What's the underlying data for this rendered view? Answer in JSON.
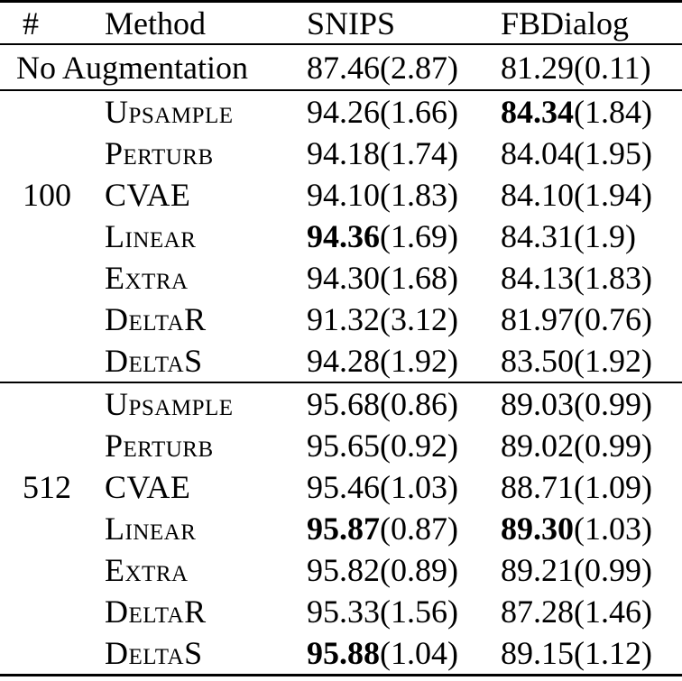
{
  "colors": {
    "background": "#ffffff",
    "text": "#000000"
  },
  "table": {
    "headers": {
      "count": "#",
      "method": "Method",
      "snips": "SNIPS",
      "fbdialog": "FBDialog"
    },
    "no_aug": {
      "label": "No Augmentation",
      "snips": {
        "main": "87.46",
        "paren": "(2.87)",
        "bold": false
      },
      "fb": {
        "main": "81.29",
        "paren": "(0.11)",
        "bold": false
      }
    },
    "groups": [
      {
        "count": "100",
        "rows": [
          {
            "method": "Upsample",
            "snips": {
              "main": "94.26",
              "paren": "(1.66)",
              "bold": false
            },
            "fb": {
              "main": "84.34",
              "paren": "(1.84)",
              "bold": true
            }
          },
          {
            "method": "Perturb",
            "snips": {
              "main": "94.18",
              "paren": "(1.74)",
              "bold": false
            },
            "fb": {
              "main": "84.04",
              "paren": "(1.95)",
              "bold": false
            }
          },
          {
            "method": "CVAE",
            "snips": {
              "main": "94.10",
              "paren": "(1.83)",
              "bold": false
            },
            "fb": {
              "main": "84.10",
              "paren": "(1.94)",
              "bold": false
            }
          },
          {
            "method": "Linear",
            "snips": {
              "main": "94.36",
              "paren": "(1.69)",
              "bold": true
            },
            "fb": {
              "main": "84.31",
              "paren": "(1.9)",
              "bold": false
            }
          },
          {
            "method": "Extra",
            "snips": {
              "main": "94.30",
              "paren": "(1.68)",
              "bold": false
            },
            "fb": {
              "main": "84.13",
              "paren": "(1.83)",
              "bold": false
            }
          },
          {
            "method": "DeltaR",
            "snips": {
              "main": "91.32",
              "paren": "(3.12)",
              "bold": false
            },
            "fb": {
              "main": "81.97",
              "paren": "(0.76)",
              "bold": false
            }
          },
          {
            "method": "DeltaS",
            "snips": {
              "main": "94.28",
              "paren": "(1.92)",
              "bold": false
            },
            "fb": {
              "main": "83.50",
              "paren": "(1.92)",
              "bold": false
            }
          }
        ]
      },
      {
        "count": "512",
        "rows": [
          {
            "method": "Upsample",
            "snips": {
              "main": "95.68",
              "paren": "(0.86)",
              "bold": false
            },
            "fb": {
              "main": "89.03",
              "paren": "(0.99)",
              "bold": false
            }
          },
          {
            "method": "Perturb",
            "snips": {
              "main": "95.65",
              "paren": "(0.92)",
              "bold": false
            },
            "fb": {
              "main": "89.02",
              "paren": "(0.99)",
              "bold": false
            }
          },
          {
            "method": "CVAE",
            "snips": {
              "main": "95.46",
              "paren": "(1.03)",
              "bold": false
            },
            "fb": {
              "main": "88.71",
              "paren": "(1.09)",
              "bold": false
            }
          },
          {
            "method": "Linear",
            "snips": {
              "main": "95.87",
              "paren": "(0.87)",
              "bold": true
            },
            "fb": {
              "main": "89.30",
              "paren": "(1.03)",
              "bold": true
            }
          },
          {
            "method": "Extra",
            "snips": {
              "main": "95.82",
              "paren": "(0.89)",
              "bold": false
            },
            "fb": {
              "main": "89.21",
              "paren": "(0.99)",
              "bold": false
            }
          },
          {
            "method": "DeltaR",
            "snips": {
              "main": "95.33",
              "paren": "(1.56)",
              "bold": false
            },
            "fb": {
              "main": "87.28",
              "paren": "(1.46)",
              "bold": false
            }
          },
          {
            "method": "DeltaS",
            "snips": {
              "main": "95.88",
              "paren": "(1.04)",
              "bold": true
            },
            "fb": {
              "main": "89.15",
              "paren": "(1.12)",
              "bold": false
            }
          }
        ]
      }
    ]
  }
}
